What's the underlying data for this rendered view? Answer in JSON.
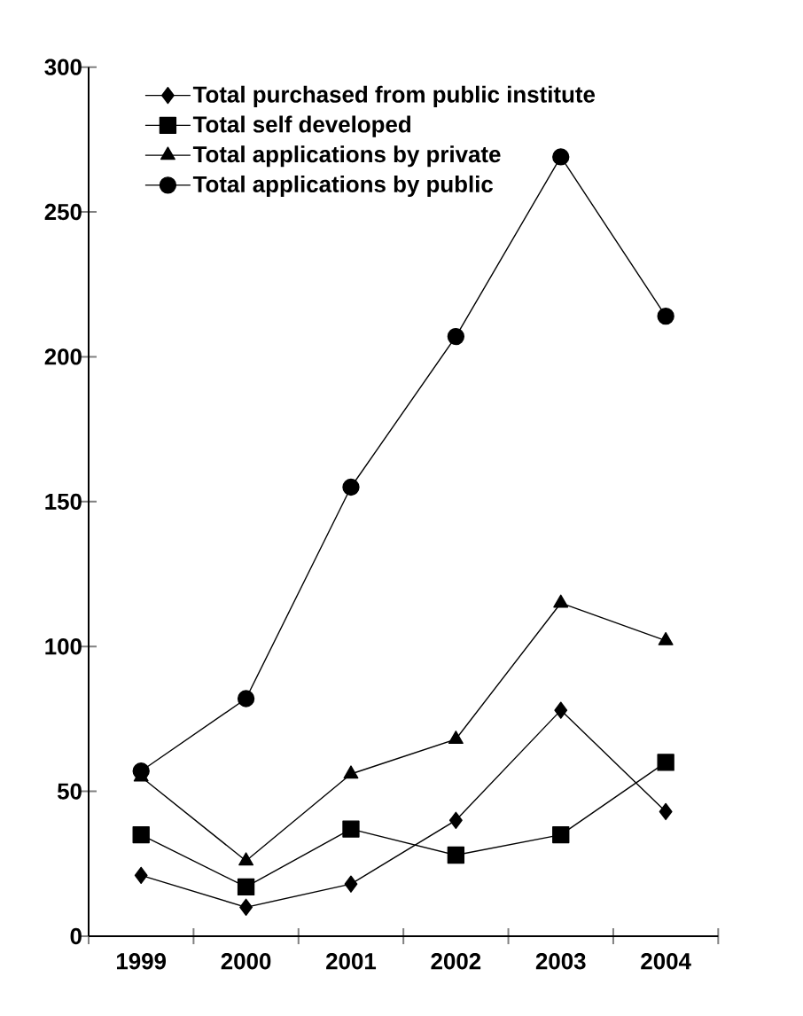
{
  "chart_data": {
    "type": "line",
    "categories": [
      "1999",
      "2000",
      "2001",
      "2002",
      "2003",
      "2004"
    ],
    "series": [
      {
        "name": "Total purchased from public institute",
        "color": "#000000",
        "marker": "diamond",
        "values": [
          21,
          10,
          18,
          40,
          78,
          43
        ]
      },
      {
        "name": "Total self developed",
        "color": "#000000",
        "marker": "square",
        "values": [
          35,
          17,
          37,
          28,
          35,
          60
        ]
      },
      {
        "name": "Total applications by private",
        "color": "#000000",
        "marker": "triangle",
        "values": [
          55,
          26,
          56,
          68,
          115,
          102
        ]
      },
      {
        "name": "Total applications by public",
        "color": "#000000",
        "marker": "circle",
        "values": [
          57,
          82,
          155,
          207,
          269,
          214
        ]
      }
    ],
    "ylim": [
      0,
      300
    ],
    "yticks": [
      0,
      50,
      100,
      150,
      200,
      250,
      300
    ],
    "grid": false,
    "legend": "top left",
    "line_style": "solid"
  }
}
